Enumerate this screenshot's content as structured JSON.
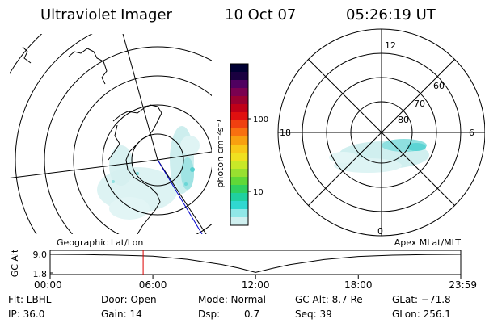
{
  "header": {
    "title": "Ultraviolet Imager",
    "date": "10 Oct 07",
    "time": "05:26:19 UT"
  },
  "left_panel": {
    "label": "Geographic Lat/Lon"
  },
  "right_panel": {
    "label": "Apex MLat/MLT",
    "mlt_labels": {
      "top": "12",
      "bottom": "0",
      "left": "18",
      "right": "6"
    },
    "mlat_labels": [
      "60",
      "70",
      "80"
    ]
  },
  "colorbar": {
    "label": "photon cm⁻²s⁻¹",
    "ticks": [
      "100",
      "10"
    ],
    "colors": [
      "#000033",
      "#1a0040",
      "#500060",
      "#7a0050",
      "#9a0030",
      "#c00018",
      "#e01010",
      "#f04010",
      "#f87010",
      "#f8a010",
      "#f8c818",
      "#f0e020",
      "#c8e828",
      "#98e030",
      "#60d838",
      "#30d060",
      "#20d0a0",
      "#30d8d0",
      "#90e8e8",
      "#d0f0f0"
    ]
  },
  "chart_data": {
    "type": "line",
    "title": "",
    "xlabel": "",
    "ylabel": "GC Alt",
    "ylim": [
      1.8,
      9.0
    ],
    "y_ticks": [
      "9.0",
      "1.8"
    ],
    "x_ticks": [
      "00:00",
      "06:00",
      "12:00",
      "18:00",
      "23:59"
    ],
    "x": [
      "00:00",
      "02:00",
      "04:00",
      "06:00",
      "08:00",
      "10:00",
      "11:00",
      "12:00",
      "13:00",
      "14:00",
      "16:00",
      "18:00",
      "20:00",
      "22:00",
      "23:59"
    ],
    "y": [
      9.0,
      8.9,
      8.7,
      8.3,
      7.1,
      5.1,
      3.7,
      2.0,
      3.6,
      5.0,
      7.0,
      8.2,
      8.7,
      8.9,
      9.0
    ],
    "current_time": "05:26"
  },
  "info": {
    "flt": "Flt: LBHL",
    "ip": "IP: 36.0",
    "door": "Door: Open",
    "gain": "Gain: 14",
    "mode": "Mode: Normal",
    "dsp": "Dsp:",
    "dsp_value": "0.7",
    "gc_alt": "GC Alt: 8.7 Re",
    "seq": "Seq: 39",
    "glat": "GLat: −71.8",
    "glon": "GLon: 256.1"
  }
}
